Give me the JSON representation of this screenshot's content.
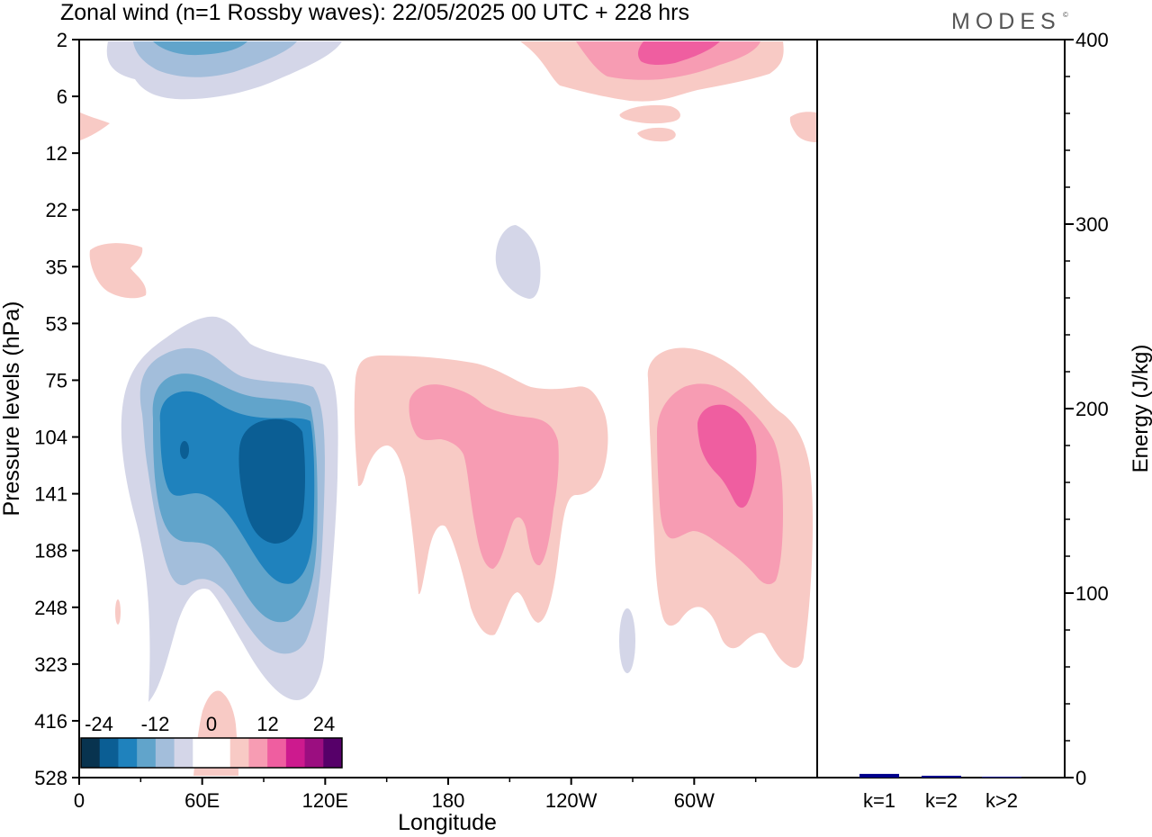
{
  "title": "Zonal wind (n=1 Rossby waves):  22/05/2025  00 UTC  + 228 hrs",
  "logo": "MODES",
  "logo_mark": "©",
  "chart_data": [
    {
      "type": "heatmap",
      "xlabel": "Longitude",
      "ylabel": "Pressure levels (hPa)",
      "x_ticks": [
        "0",
        "60E",
        "120E",
        "180",
        "120W",
        "60W"
      ],
      "y_ticks": [
        "2",
        "6",
        "12",
        "22",
        "35",
        "53",
        "75",
        "104",
        "141",
        "188",
        "248",
        "323",
        "416",
        "528"
      ],
      "colorbar": {
        "labels": [
          "-24",
          "-12",
          "0",
          "12",
          "24"
        ],
        "colors": [
          "#08334f",
          "#0b5e94",
          "#1f82bd",
          "#61a4cb",
          "#a3bedb",
          "#d4d6e8",
          "#ffffff",
          "#ffffff",
          "#f8cac5",
          "#f79cb3",
          "#ef5ea0",
          "#cd1a8e",
          "#9b0e80",
          "#560069"
        ]
      },
      "contour_levels_shown": [
        "-24 to -20",
        "-20 to -16",
        "-16 to -12",
        "-12 to -8",
        "-8 to -4",
        "4 to 8",
        "8 to 12",
        "12 to 16"
      ]
    },
    {
      "type": "bar",
      "ylabel": "Energy (J/kg)",
      "ylim": [
        0,
        400
      ],
      "y_ticks": [
        "0",
        "100",
        "200",
        "300",
        "400"
      ],
      "categories": [
        "k=1",
        "k=2",
        "k>2"
      ],
      "values": [
        2,
        1,
        0.5
      ],
      "bar_color": "#00008b"
    }
  ]
}
